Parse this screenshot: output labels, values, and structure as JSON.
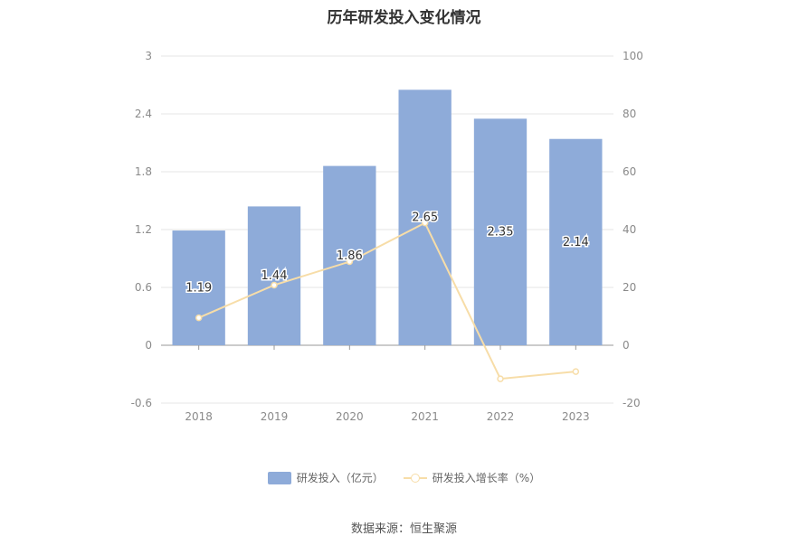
{
  "chart_data": {
    "type": "bar",
    "title": "历年研发投入变化情况",
    "categories": [
      "2018",
      "2019",
      "2020",
      "2021",
      "2022",
      "2023"
    ],
    "series": [
      {
        "name": "研发投入（亿元）",
        "type": "bar",
        "axis": "left",
        "values": [
          1.19,
          1.44,
          1.86,
          2.65,
          2.35,
          2.14
        ],
        "labels": [
          "1.19",
          "1.44",
          "1.86",
          "2.65",
          "2.35",
          "2.14"
        ],
        "color": "#8eabd9"
      },
      {
        "name": "研发投入增长率（%）",
        "type": "line",
        "axis": "right",
        "values": [
          9.5,
          20.8,
          28.9,
          42.3,
          -11.6,
          -9.1
        ],
        "color": "#f7dda8"
      }
    ],
    "y_left": {
      "ticks": [
        "3",
        "2.4",
        "1.8",
        "1.2",
        "0.6",
        "0",
        "-0.6"
      ],
      "range": [
        -0.6,
        3
      ]
    },
    "y_right": {
      "ticks": [
        "100",
        "80",
        "60",
        "40",
        "20",
        "0",
        "-20"
      ],
      "range": [
        -20,
        100
      ]
    },
    "grid": true,
    "legend_position": "bottom"
  },
  "source": "数据来源：恒生聚源"
}
